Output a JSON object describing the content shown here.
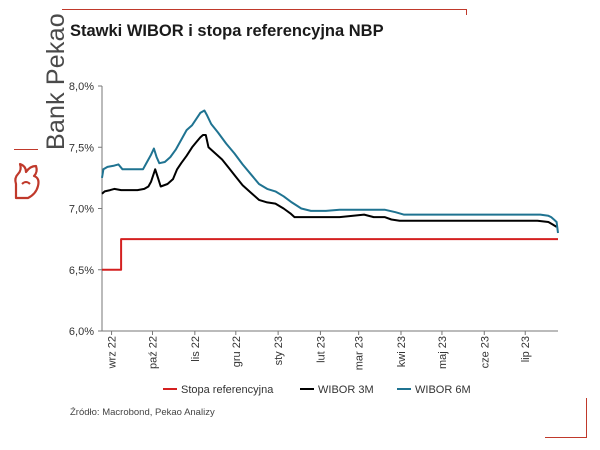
{
  "brand": {
    "name": "Bank Pekao"
  },
  "header": {
    "title": "Stawki WIBOR i stopa referencyjna NBP"
  },
  "footer": {
    "source": "Źródło: Macrobond, Pekao Analizy"
  },
  "colors": {
    "accent": "#c0392b",
    "wibor3m": "#000000",
    "wibor6m": "#1f7391",
    "stopa": "#d42020"
  },
  "chart_data": {
    "type": "line",
    "title": "Stawki WIBOR i stopa referencyjna NBP",
    "xlabel": "",
    "ylabel": "",
    "ylim": [
      6.0,
      8.0
    ],
    "yticks": [
      {
        "value": 6.0,
        "label": "6,0%"
      },
      {
        "value": 6.5,
        "label": "6,5%"
      },
      {
        "value": 7.0,
        "label": "7,0%"
      },
      {
        "value": 7.5,
        "label": "7,5%"
      },
      {
        "value": 8.0,
        "label": "8,0%"
      }
    ],
    "xrange": [
      "2022-08-25",
      "2023-07-25"
    ],
    "xticks": [
      {
        "date": "2022-09-01",
        "label": "wrz 22"
      },
      {
        "date": "2022-10-01",
        "label": "paź 22"
      },
      {
        "date": "2022-11-01",
        "label": "lis 22"
      },
      {
        "date": "2022-12-01",
        "label": "gru 22"
      },
      {
        "date": "2023-01-01",
        "label": "sty 23"
      },
      {
        "date": "2023-02-01",
        "label": "lut 23"
      },
      {
        "date": "2023-03-01",
        "label": "mar 23"
      },
      {
        "date": "2023-04-01",
        "label": "kwi 23"
      },
      {
        "date": "2023-05-01",
        "label": "maj 23"
      },
      {
        "date": "2023-06-01",
        "label": "cze 23"
      },
      {
        "date": "2023-07-01",
        "label": "lip 23"
      }
    ],
    "grid": false,
    "legend_position": "bottom",
    "series": [
      {
        "name": "Stopa referencyjna",
        "color": "#d42020",
        "step": true,
        "points": [
          [
            "2022-08-25",
            6.5
          ],
          [
            "2022-09-08",
            6.75
          ],
          [
            "2023-07-25",
            6.75
          ]
        ]
      },
      {
        "name": "WIBOR 3M",
        "color": "#000000",
        "points": [
          [
            "2022-08-25",
            7.12
          ],
          [
            "2022-08-27",
            7.14
          ],
          [
            "2022-08-31",
            7.15
          ],
          [
            "2022-09-03",
            7.16
          ],
          [
            "2022-09-08",
            7.15
          ],
          [
            "2022-09-15",
            7.15
          ],
          [
            "2022-09-20",
            7.15
          ],
          [
            "2022-09-25",
            7.16
          ],
          [
            "2022-09-28",
            7.18
          ],
          [
            "2022-09-30",
            7.22
          ],
          [
            "2022-10-03",
            7.32
          ],
          [
            "2022-10-05",
            7.25
          ],
          [
            "2022-10-07",
            7.18
          ],
          [
            "2022-10-12",
            7.2
          ],
          [
            "2022-10-16",
            7.24
          ],
          [
            "2022-10-19",
            7.32
          ],
          [
            "2022-10-22",
            7.37
          ],
          [
            "2022-10-26",
            7.43
          ],
          [
            "2022-10-30",
            7.5
          ],
          [
            "2022-11-02",
            7.54
          ],
          [
            "2022-11-05",
            7.58
          ],
          [
            "2022-11-07",
            7.6
          ],
          [
            "2022-11-09",
            7.6
          ],
          [
            "2022-11-11",
            7.5
          ],
          [
            "2022-11-16",
            7.45
          ],
          [
            "2022-11-21",
            7.4
          ],
          [
            "2022-11-26",
            7.33
          ],
          [
            "2022-12-01",
            7.26
          ],
          [
            "2022-12-06",
            7.19
          ],
          [
            "2022-12-12",
            7.13
          ],
          [
            "2022-12-18",
            7.07
          ],
          [
            "2022-12-24",
            7.05
          ],
          [
            "2022-12-30",
            7.04
          ],
          [
            "2023-01-05",
            7.0
          ],
          [
            "2023-01-10",
            6.96
          ],
          [
            "2023-01-13",
            6.93
          ],
          [
            "2023-01-20",
            6.93
          ],
          [
            "2023-01-28",
            6.93
          ],
          [
            "2023-02-05",
            6.93
          ],
          [
            "2023-02-15",
            6.93
          ],
          [
            "2023-02-25",
            6.94
          ],
          [
            "2023-03-05",
            6.95
          ],
          [
            "2023-03-12",
            6.93
          ],
          [
            "2023-03-20",
            6.93
          ],
          [
            "2023-03-25",
            6.91
          ],
          [
            "2023-03-31",
            6.9
          ],
          [
            "2023-04-15",
            6.9
          ],
          [
            "2023-05-01",
            6.9
          ],
          [
            "2023-05-20",
            6.9
          ],
          [
            "2023-06-10",
            6.9
          ],
          [
            "2023-06-25",
            6.9
          ],
          [
            "2023-07-10",
            6.9
          ],
          [
            "2023-07-18",
            6.89
          ],
          [
            "2023-07-21",
            6.87
          ],
          [
            "2023-07-24",
            6.85
          ]
        ]
      },
      {
        "name": "WIBOR 6M",
        "color": "#1f7391",
        "points": [
          [
            "2022-08-25",
            7.25
          ],
          [
            "2022-08-26",
            7.32
          ],
          [
            "2022-08-29",
            7.34
          ],
          [
            "2022-09-03",
            7.35
          ],
          [
            "2022-09-06",
            7.36
          ],
          [
            "2022-09-09",
            7.32
          ],
          [
            "2022-09-15",
            7.32
          ],
          [
            "2022-09-20",
            7.32
          ],
          [
            "2022-09-24",
            7.32
          ],
          [
            "2022-09-26",
            7.36
          ],
          [
            "2022-09-28",
            7.4
          ],
          [
            "2022-09-30",
            7.44
          ],
          [
            "2022-10-02",
            7.49
          ],
          [
            "2022-10-04",
            7.42
          ],
          [
            "2022-10-06",
            7.37
          ],
          [
            "2022-10-10",
            7.38
          ],
          [
            "2022-10-14",
            7.42
          ],
          [
            "2022-10-18",
            7.48
          ],
          [
            "2022-10-22",
            7.56
          ],
          [
            "2022-10-26",
            7.64
          ],
          [
            "2022-10-30",
            7.68
          ],
          [
            "2022-11-02",
            7.73
          ],
          [
            "2022-11-05",
            7.78
          ],
          [
            "2022-11-08",
            7.8
          ],
          [
            "2022-11-10",
            7.76
          ],
          [
            "2022-11-13",
            7.69
          ],
          [
            "2022-11-18",
            7.62
          ],
          [
            "2022-11-24",
            7.53
          ],
          [
            "2022-11-30",
            7.45
          ],
          [
            "2022-12-06",
            7.36
          ],
          [
            "2022-12-12",
            7.28
          ],
          [
            "2022-12-18",
            7.2
          ],
          [
            "2022-12-24",
            7.16
          ],
          [
            "2022-12-30",
            7.14
          ],
          [
            "2023-01-05",
            7.1
          ],
          [
            "2023-01-11",
            7.05
          ],
          [
            "2023-01-18",
            7.0
          ],
          [
            "2023-01-25",
            6.98
          ],
          [
            "2023-02-05",
            6.98
          ],
          [
            "2023-02-15",
            6.99
          ],
          [
            "2023-02-28",
            6.99
          ],
          [
            "2023-03-10",
            6.99
          ],
          [
            "2023-03-20",
            6.99
          ],
          [
            "2023-03-28",
            6.97
          ],
          [
            "2023-04-03",
            6.95
          ],
          [
            "2023-04-15",
            6.95
          ],
          [
            "2023-05-01",
            6.95
          ],
          [
            "2023-05-20",
            6.95
          ],
          [
            "2023-06-10",
            6.95
          ],
          [
            "2023-06-28",
            6.95
          ],
          [
            "2023-07-12",
            6.95
          ],
          [
            "2023-07-18",
            6.94
          ],
          [
            "2023-07-20",
            6.93
          ],
          [
            "2023-07-22",
            6.91
          ],
          [
            "2023-07-24",
            6.89
          ],
          [
            "2023-07-25",
            6.8
          ]
        ]
      }
    ]
  }
}
